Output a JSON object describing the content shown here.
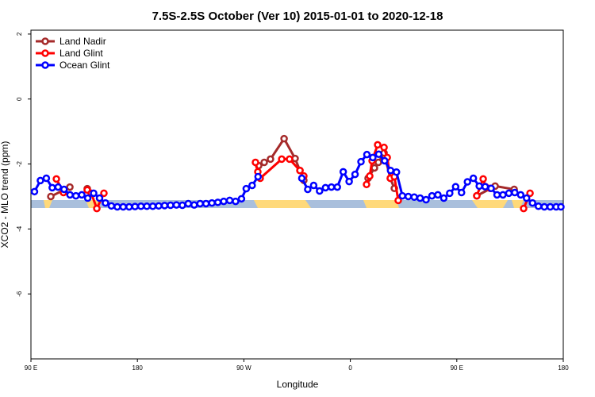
{
  "chart_data": {
    "type": "line",
    "title": "7.5S-2.5S October (Ver 10)   2015-01-01 to 2020-12-18",
    "x_label": "Longitude",
    "y_label": "XCO2 - MLO trend (ppm)",
    "xlim": [
      90,
      540
    ],
    "ylim": [
      -8,
      2.12
    ],
    "xticks": [
      {
        "value": 90,
        "label": "90 E"
      },
      {
        "value": 180,
        "label": "180"
      },
      {
        "value": 270,
        "label": "90 W"
      },
      {
        "value": 360,
        "label": "0"
      },
      {
        "value": 450,
        "label": "90 E"
      },
      {
        "value": 540,
        "label": "180"
      }
    ],
    "yticks": [
      -6,
      -4,
      -2,
      0,
      2
    ],
    "legend": "top-left",
    "series": [
      {
        "name": "Land Nadir",
        "color": "#a52a2a",
        "x": [
          106.8,
          122.9,
          130,
          137.6,
          210,
          282.5,
          287.2,
          292.5,
          304,
          313.3,
          317.4,
          320.7,
          350,
          375,
          380.4,
          383.7,
          388.5,
          393.8,
          397.2,
          430,
          466.9,
          482.4,
          498.5
        ],
        "values": [
          -3.0,
          -2.71,
          null,
          -2.76,
          null,
          -2.05,
          -1.95,
          -1.85,
          -1.22,
          -1.83,
          -2.2,
          -2.5,
          null,
          -2.44,
          -2.12,
          -1.95,
          -1.66,
          -2.44,
          -2.75,
          null,
          -2.98,
          -2.68,
          -2.78
        ]
      },
      {
        "name": "Land Glint",
        "color": "#ff0000",
        "x": [
          111.5,
          117.5,
          128,
          137.6,
          141,
          145.7,
          151.7,
          220,
          279.8,
          281.8,
          283.8,
          302,
          308.6,
          317.4,
          320.7,
          350,
          373.7,
          376.4,
          378.4,
          383.1,
          388.5,
          391.2,
          393.8,
          397.2,
          400.5,
          430,
          466.9,
          472.3,
          474.3,
          478.3,
          490,
          506.5,
          511.9
        ],
        "values": [
          -2.46,
          -2.88,
          null,
          -2.8,
          -2.9,
          -3.37,
          -2.9,
          null,
          -1.95,
          -2.24,
          -2.44,
          -1.85,
          -1.85,
          -2.2,
          -2.37,
          null,
          -2.63,
          -2.37,
          -1.9,
          -1.41,
          -1.49,
          -1.8,
          -2.44,
          -2.39,
          -3.12,
          null,
          -2.98,
          -2.46,
          -2.7,
          -2.75,
          null,
          -3.37,
          -2.9
        ]
      },
      {
        "name": "Ocean Glint",
        "color": "#0000ff",
        "x": [
          93,
          98,
          103,
          108,
          113,
          118,
          123,
          128,
          133,
          138,
          143,
          148,
          153,
          158,
          163,
          168,
          173,
          178,
          183,
          188,
          193,
          198,
          203,
          208,
          213,
          218,
          223,
          228,
          233,
          238,
          243,
          248,
          253,
          258,
          263,
          268,
          272,
          277,
          282,
          300,
          319,
          324,
          329,
          334,
          339,
          344,
          349,
          354,
          359,
          364,
          369,
          374,
          379,
          384,
          389,
          394,
          399,
          404,
          409,
          414,
          419,
          424,
          429,
          434,
          439,
          444,
          449,
          454,
          459,
          464,
          469,
          474,
          479,
          484,
          489,
          494,
          499,
          504,
          509,
          514,
          519,
          524,
          529,
          534,
          538
        ],
        "values": [
          -2.85,
          -2.51,
          -2.44,
          -2.73,
          -2.71,
          -2.78,
          -2.95,
          -2.98,
          -2.95,
          -3.05,
          -2.9,
          -3.05,
          -3.2,
          -3.29,
          -3.32,
          -3.32,
          -3.32,
          -3.31,
          -3.3,
          -3.3,
          -3.3,
          -3.29,
          -3.28,
          -3.27,
          -3.26,
          -3.27,
          -3.22,
          -3.26,
          -3.22,
          -3.22,
          -3.2,
          -3.18,
          -3.15,
          -3.12,
          -3.15,
          -3.07,
          -2.76,
          -2.66,
          -2.39,
          null,
          -2.44,
          -2.78,
          -2.66,
          -2.83,
          -2.73,
          -2.71,
          -2.71,
          -2.24,
          -2.54,
          -2.32,
          -1.93,
          -1.71,
          -1.8,
          -1.7,
          -1.9,
          -2.2,
          -2.25,
          -2.98,
          -3.0,
          -3.02,
          -3.05,
          -3.1,
          -2.98,
          -2.95,
          -3.05,
          -2.9,
          -2.7,
          -2.88,
          -2.55,
          -2.44,
          -2.68,
          -2.7,
          -2.75,
          -2.95,
          -2.95,
          -2.9,
          -2.88,
          -2.95,
          -3.05,
          -3.2,
          -3.3,
          -3.32,
          -3.32,
          -3.32,
          -3.32
        ]
      }
    ]
  }
}
